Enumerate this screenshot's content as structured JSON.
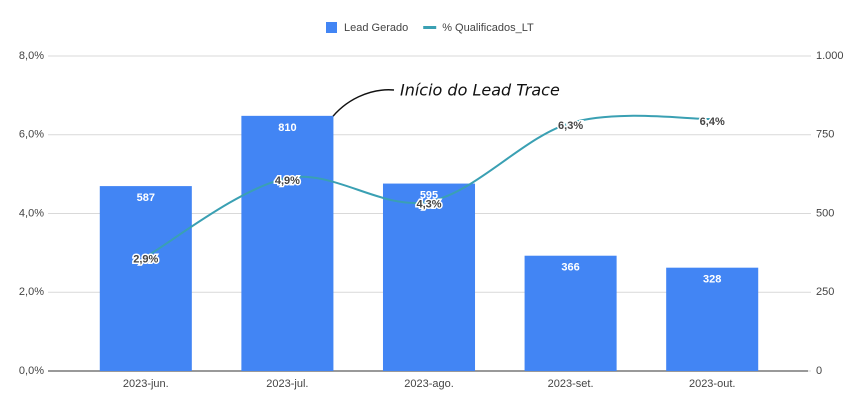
{
  "chart_data": {
    "type": "combo",
    "categories": [
      "2023-jun.",
      "2023-jul.",
      "2023-ago.",
      "2023-set.",
      "2023-out."
    ],
    "series": [
      {
        "name": "Lead Gerado",
        "type": "bar",
        "axis": "y2",
        "color": "#4285f4",
        "values": [
          587,
          810,
          595,
          366,
          328
        ]
      },
      {
        "name": "% Qualificados_LT",
        "type": "line",
        "color": "#3aa0b3",
        "values": [
          2.9,
          4.9,
          4.3,
          6.3,
          6.4
        ],
        "value_labels": [
          "2,9%",
          "4,9%",
          "4,3%",
          "6,3%",
          "6,4%"
        ]
      }
    ],
    "ylim": [
      0,
      8
    ],
    "yticks": [
      {
        "value": 0,
        "label": "0,0%"
      },
      {
        "value": 2,
        "label": "2,0%"
      },
      {
        "value": 4,
        "label": "4,0%"
      },
      {
        "value": 6,
        "label": "6,0%"
      },
      {
        "value": 8,
        "label": "8,0%"
      }
    ],
    "y2lim": [
      0,
      1000
    ],
    "y2ticks": [
      0,
      250,
      500,
      750,
      {
        "value": 1000,
        "label": "1.000"
      }
    ],
    "grid": true,
    "legend": "top",
    "annotation": "Início do Lead Trace"
  }
}
